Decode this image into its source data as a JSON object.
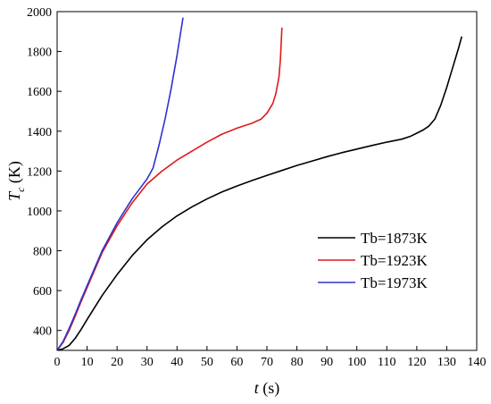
{
  "chart_data": {
    "type": "line",
    "xlabel": {
      "italic": "t",
      "rest": " (s)"
    },
    "ylabel": {
      "italic": "T",
      "sub": "c",
      "rest": " (K)"
    },
    "xlim": [
      0,
      140
    ],
    "ylim": [
      300,
      2000
    ],
    "x_ticks": [
      0,
      10,
      20,
      30,
      40,
      50,
      60,
      70,
      80,
      90,
      100,
      110,
      120,
      130,
      140
    ],
    "y_ticks": [
      400,
      600,
      800,
      1000,
      1200,
      1400,
      1600,
      1800,
      2000
    ],
    "grid": false,
    "legend_position": "center-right",
    "series": [
      {
        "name": "Tb=1873K",
        "color": "#000000",
        "x": [
          0,
          2,
          4,
          6,
          8,
          10,
          15,
          20,
          25,
          30,
          35,
          40,
          45,
          50,
          55,
          60,
          65,
          70,
          75,
          80,
          85,
          90,
          95,
          100,
          105,
          110,
          115,
          118,
          120,
          122,
          124,
          126,
          128,
          130,
          132,
          134,
          135
        ],
        "y": [
          300,
          308,
          325,
          360,
          405,
          455,
          575,
          680,
          775,
          855,
          920,
          975,
          1020,
          1060,
          1095,
          1125,
          1152,
          1178,
          1203,
          1228,
          1250,
          1272,
          1292,
          1310,
          1328,
          1345,
          1360,
          1375,
          1390,
          1405,
          1425,
          1460,
          1530,
          1620,
          1720,
          1820,
          1875
        ]
      },
      {
        "name": "Tb=1923K",
        "color": "#e0191c",
        "x": [
          0,
          2,
          4,
          6,
          8,
          10,
          15,
          20,
          25,
          30,
          35,
          40,
          45,
          50,
          55,
          60,
          65,
          68,
          70,
          72,
          73,
          74,
          74.5,
          75
        ],
        "y": [
          300,
          340,
          400,
          470,
          545,
          615,
          790,
          925,
          1040,
          1135,
          1200,
          1255,
          1300,
          1345,
          1385,
          1415,
          1440,
          1460,
          1490,
          1540,
          1590,
          1670,
          1760,
          1920
        ]
      },
      {
        "name": "Tb=1973K",
        "color": "#2e33cc",
        "x": [
          0,
          2,
          4,
          6,
          8,
          10,
          15,
          20,
          25,
          28,
          30,
          32,
          34,
          36,
          38,
          40,
          42
        ],
        "y": [
          300,
          345,
          410,
          480,
          555,
          625,
          800,
          940,
          1060,
          1120,
          1160,
          1215,
          1330,
          1460,
          1610,
          1780,
          1970
        ]
      }
    ]
  }
}
